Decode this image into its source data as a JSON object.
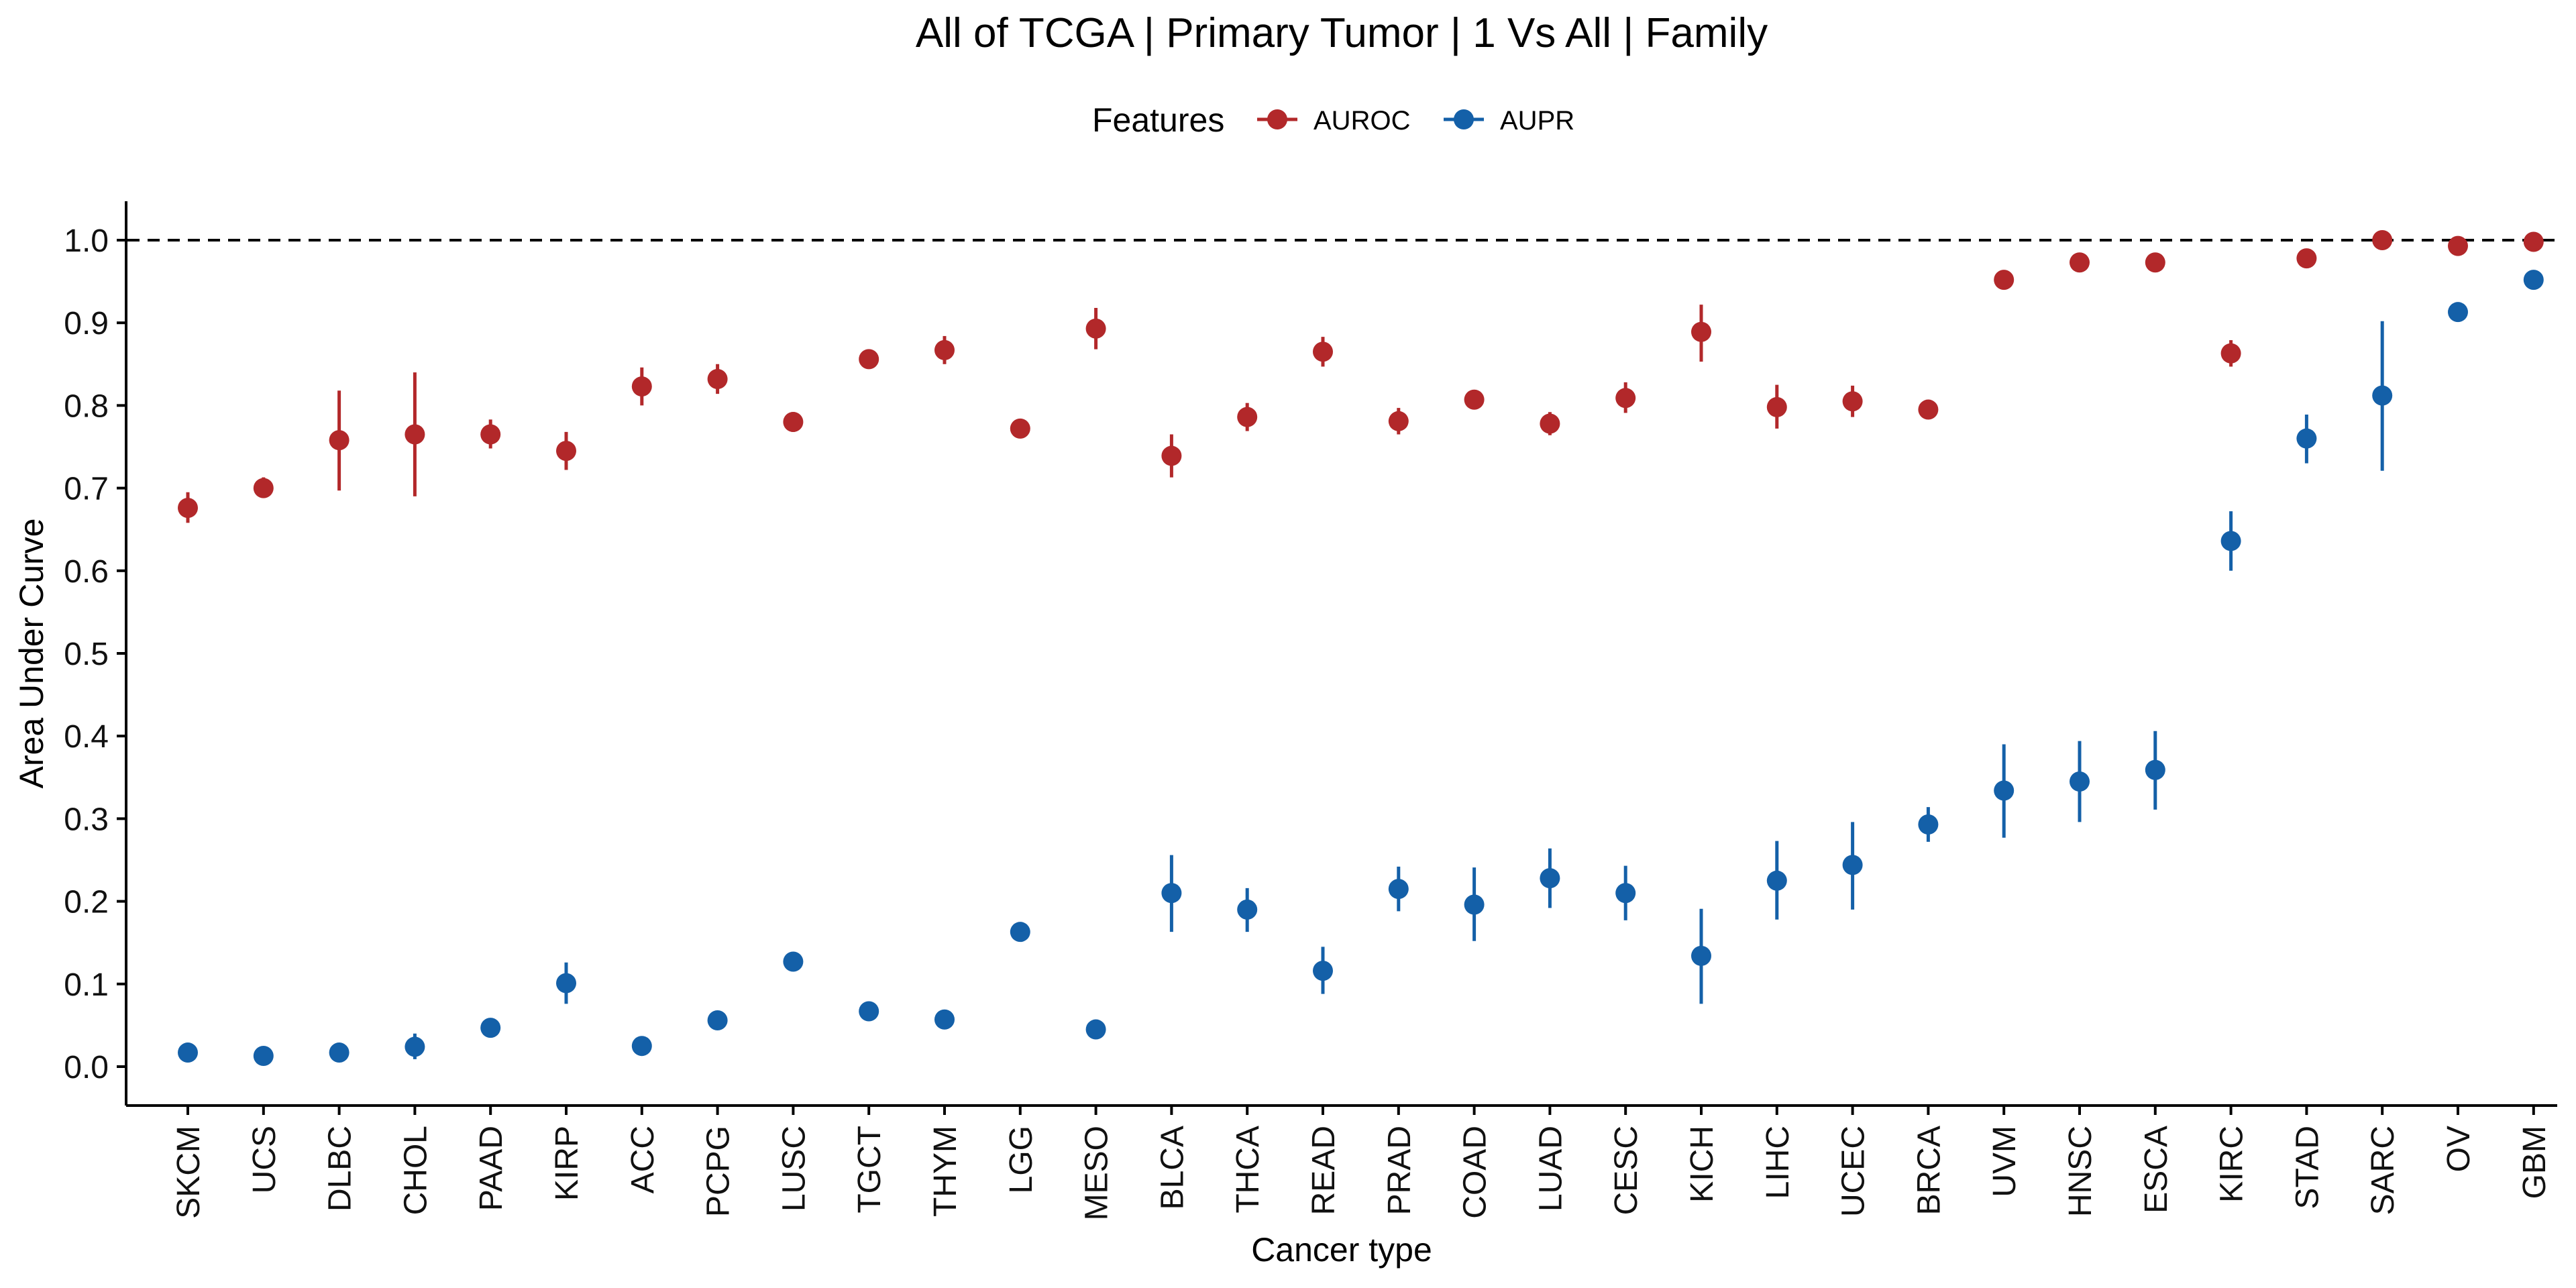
{
  "chart_data": {
    "type": "scatter",
    "title": "All of TCGA | Primary Tumor | 1 Vs All | Family",
    "xlabel": "Cancer type",
    "ylabel": "Area Under Curve",
    "legend_title": "Features",
    "legend_position": "top",
    "ylim": [
      -0.048,
      1.048
    ],
    "yticks": [
      "0.0",
      "0.1",
      "0.2",
      "0.3",
      "0.4",
      "0.5",
      "0.6",
      "0.7",
      "0.8",
      "0.9",
      "1.0"
    ],
    "reference_line": 1.0,
    "grid": false,
    "categories": [
      "SKCM",
      "UCS",
      "DLBC",
      "CHOL",
      "PAAD",
      "KIRP",
      "ACC",
      "PCPG",
      "LUSC",
      "TGCT",
      "THYM",
      "LGG",
      "MESO",
      "BLCA",
      "THCA",
      "READ",
      "PRAD",
      "COAD",
      "LUAD",
      "CESC",
      "KICH",
      "LIHC",
      "UCEC",
      "BRCA",
      "UVM",
      "HNSC",
      "ESCA",
      "KIRC",
      "STAD",
      "SARC",
      "OV",
      "GBM"
    ],
    "series": [
      {
        "name": "AUROC",
        "color": "#B2282A",
        "values": [
          0.676,
          0.7,
          0.758,
          0.765,
          0.765,
          0.745,
          0.823,
          0.832,
          0.78,
          0.856,
          0.867,
          0.772,
          0.893,
          0.739,
          0.786,
          0.865,
          0.781,
          0.807,
          0.778,
          0.809,
          0.889,
          0.798,
          0.805,
          0.795,
          0.952,
          0.973,
          0.973,
          0.863,
          0.978,
          1.0,
          0.993,
          0.998
        ],
        "lower": [
          0.658,
          0.688,
          0.697,
          0.69,
          0.748,
          0.722,
          0.8,
          0.814,
          0.768,
          0.852,
          0.85,
          0.768,
          0.868,
          0.713,
          0.769,
          0.847,
          0.765,
          0.797,
          0.764,
          0.791,
          0.853,
          0.772,
          0.786,
          0.791,
          0.947,
          0.969,
          0.969,
          0.847,
          0.974,
          0.996,
          0.989,
          0.994
        ],
        "upper": [
          0.695,
          0.713,
          0.818,
          0.84,
          0.783,
          0.768,
          0.846,
          0.85,
          0.792,
          0.86,
          0.884,
          0.776,
          0.918,
          0.765,
          0.803,
          0.883,
          0.797,
          0.817,
          0.792,
          0.828,
          0.922,
          0.825,
          0.824,
          0.799,
          0.957,
          0.977,
          0.977,
          0.879,
          0.982,
          1.004,
          0.997,
          1.002
        ]
      },
      {
        "name": "AUPR",
        "color": "#1460A8",
        "values": [
          0.017,
          0.013,
          0.017,
          0.024,
          0.047,
          0.101,
          0.025,
          0.056,
          0.127,
          0.067,
          0.057,
          0.163,
          0.045,
          0.21,
          0.19,
          0.116,
          0.215,
          0.196,
          0.228,
          0.21,
          0.134,
          0.225,
          0.244,
          0.293,
          0.334,
          0.345,
          0.359,
          0.636,
          0.76,
          0.812,
          0.913,
          0.952
        ],
        "lower": [
          0.013,
          0.009,
          0.013,
          0.009,
          0.043,
          0.076,
          0.021,
          0.045,
          0.12,
          0.057,
          0.053,
          0.155,
          0.041,
          0.163,
          0.163,
          0.088,
          0.188,
          0.152,
          0.192,
          0.177,
          0.076,
          0.178,
          0.19,
          0.272,
          0.277,
          0.296,
          0.311,
          0.6,
          0.73,
          0.721,
          0.909,
          0.948
        ],
        "upper": [
          0.021,
          0.017,
          0.021,
          0.04,
          0.051,
          0.126,
          0.029,
          0.066,
          0.134,
          0.077,
          0.061,
          0.171,
          0.049,
          0.256,
          0.216,
          0.145,
          0.242,
          0.241,
          0.264,
          0.243,
          0.191,
          0.273,
          0.296,
          0.314,
          0.39,
          0.394,
          0.406,
          0.672,
          0.789,
          0.902,
          0.917,
          0.956
        ]
      }
    ]
  }
}
